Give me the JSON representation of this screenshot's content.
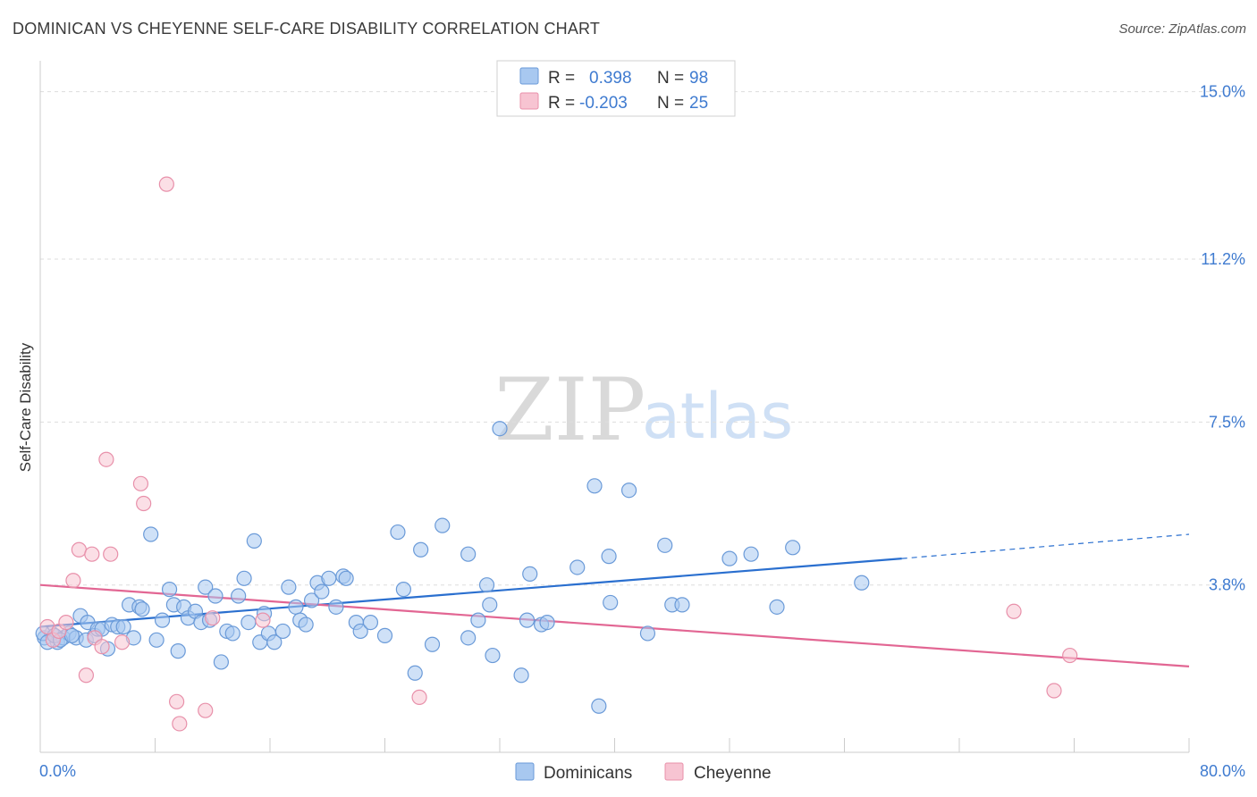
{
  "header": {
    "title": "DOMINICAN VS CHEYENNE SELF-CARE DISABILITY CORRELATION CHART",
    "source": "Source: ZipAtlas.com"
  },
  "legend": {
    "row1": {
      "r_label": "R =",
      "r_value": "0.398",
      "n_label": "N =",
      "n_value": "98"
    },
    "row2": {
      "r_label": "R =",
      "r_value": "-0.203",
      "n_label": "N =",
      "n_value": "25"
    }
  },
  "bottom_legend": {
    "series1": "Dominicans",
    "series2": "Cheyenne"
  },
  "watermark": {
    "zip": "ZIP",
    "atlas": "atlas"
  },
  "colors": {
    "blue_fill": "#a8c8f0",
    "blue_stroke": "#6a9ad8",
    "blue_line": "#2a6fcf",
    "pink_fill": "#f7c4d2",
    "pink_stroke": "#e890aa",
    "pink_line": "#e26693",
    "tick_text": "#3f7bd0",
    "grid": "#dddddd"
  },
  "chart_data": {
    "type": "scatter",
    "title": "DOMINICAN VS CHEYENNE SELF-CARE DISABILITY CORRELATION CHART",
    "xlabel": "",
    "ylabel": "Self-Care Disability",
    "xlim": [
      0,
      80
    ],
    "ylim": [
      0,
      15.5
    ],
    "x_tick_labels": [
      "0.0%",
      "80.0%"
    ],
    "y_ticks": [
      3.8,
      7.5,
      11.2,
      15.0
    ],
    "y_tick_labels": [
      "3.8%",
      "7.5%",
      "11.2%",
      "15.0%"
    ],
    "grid": true,
    "legend_position": "top-center",
    "series": [
      {
        "name": "Dominicans",
        "r": 0.398,
        "n": 98,
        "trend": {
          "x0": 0,
          "y0": 2.85,
          "x1": 60,
          "y1": 4.4,
          "dashed_to_x": 80,
          "dashed_to_y": 4.95
        },
        "points": [
          [
            0.3,
            2.6
          ],
          [
            0.8,
            2.7
          ],
          [
            1.2,
            2.5
          ],
          [
            1.6,
            2.6
          ],
          [
            2.0,
            2.7
          ],
          [
            2.5,
            2.6
          ],
          [
            2.8,
            3.1
          ],
          [
            3.2,
            2.55
          ],
          [
            3.3,
            2.95
          ],
          [
            3.8,
            2.65
          ],
          [
            4.0,
            2.8
          ],
          [
            4.3,
            2.8
          ],
          [
            4.7,
            2.35
          ],
          [
            5.0,
            2.9
          ],
          [
            5.4,
            2.85
          ],
          [
            5.8,
            2.85
          ],
          [
            6.2,
            3.35
          ],
          [
            6.5,
            2.6
          ],
          [
            6.9,
            3.3
          ],
          [
            7.1,
            3.25
          ],
          [
            7.7,
            4.95
          ],
          [
            8.1,
            2.55
          ],
          [
            8.5,
            3.0
          ],
          [
            9.0,
            3.7
          ],
          [
            9.3,
            3.35
          ],
          [
            9.6,
            2.3
          ],
          [
            10.0,
            3.3
          ],
          [
            10.3,
            3.05
          ],
          [
            10.8,
            3.2
          ],
          [
            11.2,
            2.95
          ],
          [
            11.5,
            3.75
          ],
          [
            11.8,
            3.0
          ],
          [
            12.2,
            3.55
          ],
          [
            12.6,
            2.05
          ],
          [
            13.0,
            2.75
          ],
          [
            13.4,
            2.7
          ],
          [
            13.8,
            3.55
          ],
          [
            14.2,
            3.95
          ],
          [
            14.5,
            2.95
          ],
          [
            14.9,
            4.8
          ],
          [
            15.3,
            2.5
          ],
          [
            15.6,
            3.15
          ],
          [
            15.9,
            2.7
          ],
          [
            16.3,
            2.5
          ],
          [
            16.9,
            2.75
          ],
          [
            17.3,
            3.75
          ],
          [
            17.8,
            3.3
          ],
          [
            18.1,
            3.0
          ],
          [
            18.5,
            2.9
          ],
          [
            18.9,
            3.45
          ],
          [
            19.3,
            3.85
          ],
          [
            19.6,
            3.65
          ],
          [
            20.1,
            3.95
          ],
          [
            20.6,
            3.3
          ],
          [
            21.1,
            4.0
          ],
          [
            21.3,
            3.95
          ],
          [
            22.0,
            2.95
          ],
          [
            22.3,
            2.75
          ],
          [
            23.0,
            2.95
          ],
          [
            24.0,
            2.65
          ],
          [
            24.9,
            5.0
          ],
          [
            25.3,
            3.7
          ],
          [
            26.1,
            1.8
          ],
          [
            26.5,
            4.6
          ],
          [
            27.3,
            2.45
          ],
          [
            28.0,
            5.15
          ],
          [
            29.8,
            4.5
          ],
          [
            29.8,
            2.6
          ],
          [
            30.5,
            3.0
          ],
          [
            31.1,
            3.8
          ],
          [
            31.3,
            3.35
          ],
          [
            31.5,
            2.2
          ],
          [
            32.0,
            7.35
          ],
          [
            33.5,
            1.75
          ],
          [
            33.9,
            3.0
          ],
          [
            34.1,
            4.05
          ],
          [
            34.9,
            2.9
          ],
          [
            35.3,
            2.95
          ],
          [
            37.4,
            4.2
          ],
          [
            38.6,
            6.05
          ],
          [
            38.9,
            1.05
          ],
          [
            39.6,
            4.45
          ],
          [
            39.7,
            3.4
          ],
          [
            41.0,
            5.95
          ],
          [
            42.3,
            2.7
          ],
          [
            43.5,
            4.7
          ],
          [
            44.0,
            3.35
          ],
          [
            44.7,
            3.35
          ],
          [
            48.0,
            4.4
          ],
          [
            49.5,
            4.5
          ],
          [
            51.3,
            3.3
          ],
          [
            52.4,
            4.65
          ],
          [
            57.2,
            3.85
          ],
          [
            0.2,
            2.7
          ],
          [
            0.5,
            2.5
          ],
          [
            1.0,
            2.65
          ],
          [
            1.4,
            2.55
          ],
          [
            2.2,
            2.65
          ]
        ]
      },
      {
        "name": "Cheyenne",
        "r": -0.203,
        "n": 25,
        "trend": {
          "x0": 0,
          "y0": 3.8,
          "x1": 80,
          "y1": 1.95
        },
        "points": [
          [
            0.5,
            2.85
          ],
          [
            0.9,
            2.55
          ],
          [
            1.3,
            2.75
          ],
          [
            1.8,
            2.95
          ],
          [
            2.3,
            3.9
          ],
          [
            2.7,
            4.6
          ],
          [
            3.2,
            1.75
          ],
          [
            3.6,
            4.5
          ],
          [
            3.8,
            2.6
          ],
          [
            4.3,
            2.4
          ],
          [
            4.6,
            6.65
          ],
          [
            4.9,
            4.5
          ],
          [
            5.7,
            2.5
          ],
          [
            7.0,
            6.1
          ],
          [
            7.2,
            5.65
          ],
          [
            8.8,
            12.9
          ],
          [
            9.5,
            1.15
          ],
          [
            9.7,
            0.65
          ],
          [
            11.5,
            0.95
          ],
          [
            12.0,
            3.05
          ],
          [
            15.5,
            3.0
          ],
          [
            26.4,
            1.25
          ],
          [
            67.8,
            3.2
          ],
          [
            70.6,
            1.4
          ],
          [
            71.7,
            2.2
          ]
        ]
      }
    ]
  }
}
